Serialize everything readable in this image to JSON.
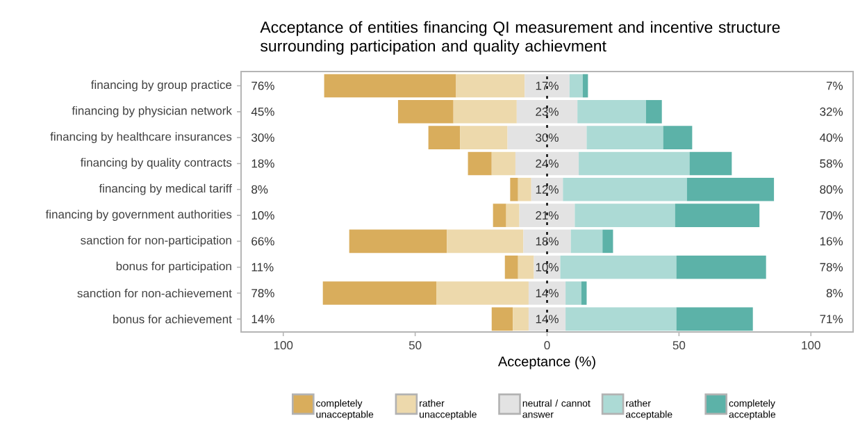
{
  "chart_data": {
    "type": "bar",
    "orientation": "horizontal",
    "title": "Acceptance of entities financing QI measurement and incentive structure surrounding participation and quality achievment",
    "xlabel": "Acceptance (%)",
    "categories": [
      "financing by group practice",
      "financing by physician network",
      "financing by healthcare insurances",
      "financing by quality contracts",
      "financing by medical tariff",
      "financing by government authorities",
      "sanction for non-participation",
      "bonus for participation",
      "sanction for non-achievement",
      "bonus for achievement"
    ],
    "annotations": [
      "76%",
      "45%",
      "30%",
      "18%",
      "8%",
      "10%",
      "66%",
      "11%",
      "78%",
      "14%",
      "7%",
      "32%",
      "40%",
      "58%",
      "80%",
      "70%",
      "16%",
      "78%",
      "8%",
      "71%"
    ],
    "xlim": [
      -116,
      116
    ],
    "xticks": [
      {
        "value": -100,
        "label": "100"
      },
      {
        "value": -50,
        "label": "50"
      },
      0,
      50,
      100
    ],
    "legend": "bottom",
    "ref_lines": [
      {
        "axis": "x",
        "value": 0,
        "line_style": "dashed",
        "color": "#000000"
      }
    ],
    "series": [
      {
        "name": "completely unacceptable",
        "color": "#d9ad5c",
        "base": [
          -84.5,
          -56.5,
          -45,
          -30,
          -14,
          -20.5,
          -75,
          -16,
          -85,
          -21
        ],
        "values": [
          50,
          21,
          12,
          9,
          3,
          5,
          37,
          5,
          43,
          8
        ]
      },
      {
        "name": "rather unacceptable",
        "color": "#edd9ac",
        "base": [
          -34.5,
          -35.5,
          -33,
          -21,
          -11,
          -15.5,
          -38,
          -11,
          -42,
          -13
        ],
        "values": [
          26,
          24,
          18,
          9,
          5,
          5,
          29,
          6,
          35,
          6
        ]
      },
      {
        "name": "neutral / cannot answer",
        "color": "#e3e3e3",
        "base": [
          -8.5,
          -11.5,
          -15,
          -12,
          -6,
          -10.5,
          -9,
          -5,
          -7,
          -7
        ],
        "values": [
          17,
          23,
          30,
          24,
          12,
          21,
          18,
          10,
          14,
          14
        ],
        "value_labels": [
          "17%",
          "23%",
          "30%",
          "24%",
          "12%",
          "21%",
          "18%",
          "10%",
          "14%",
          "14%"
        ]
      },
      {
        "name": "rather acceptable",
        "color": "#acdad5",
        "base": [
          8.5,
          11.5,
          15,
          12,
          6,
          10.5,
          9,
          5,
          7,
          7
        ],
        "values": [
          5,
          26,
          29,
          42,
          47,
          38,
          12,
          44,
          6,
          42
        ]
      },
      {
        "name": "completely acceptable",
        "color": "#5cb2a8",
        "base": [
          13.5,
          37.5,
          44,
          54,
          53,
          48.5,
          21,
          49,
          13,
          49
        ],
        "values": [
          2,
          6,
          11,
          16,
          33,
          32,
          4,
          34,
          2,
          29
        ]
      }
    ]
  }
}
